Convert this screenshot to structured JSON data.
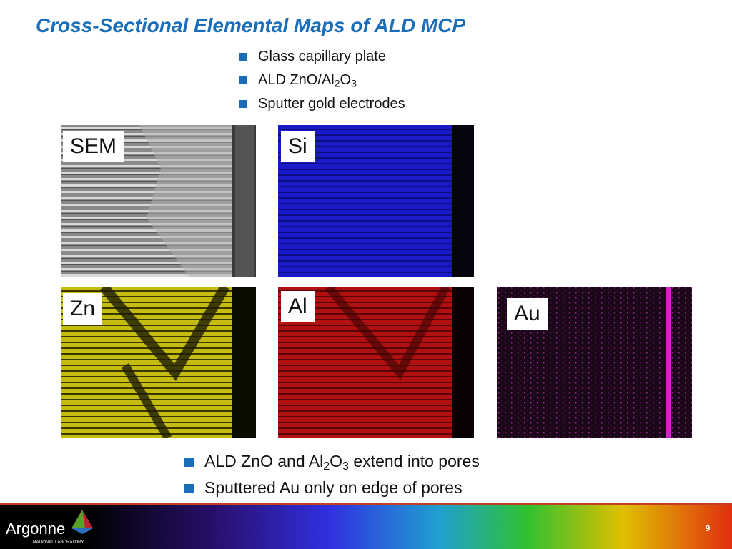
{
  "title": "Cross-Sectional Elemental Maps of ALD MCP",
  "top_bullets": [
    {
      "parts": [
        "Glass capillary plate"
      ]
    },
    {
      "parts": [
        "ALD ZnO/Al",
        "2",
        "O",
        "3"
      ]
    },
    {
      "parts": [
        "Sputter gold electrodes"
      ]
    }
  ],
  "panels": [
    {
      "label": "SEM"
    },
    {
      "label": "Si"
    },
    {
      "label": "Zn"
    },
    {
      "label": "Al"
    },
    {
      "label": "Au"
    }
  ],
  "bottom_bullets": [
    {
      "parts": [
        "ALD ZnO and Al",
        "2",
        "O",
        "3",
        " extend into pores"
      ]
    },
    {
      "parts": [
        "Sputtered Au only on edge of pores"
      ]
    }
  ],
  "footer": {
    "logo": "Argonne",
    "logo_sub": "NATIONAL LABORATORY",
    "page_number": 9
  }
}
